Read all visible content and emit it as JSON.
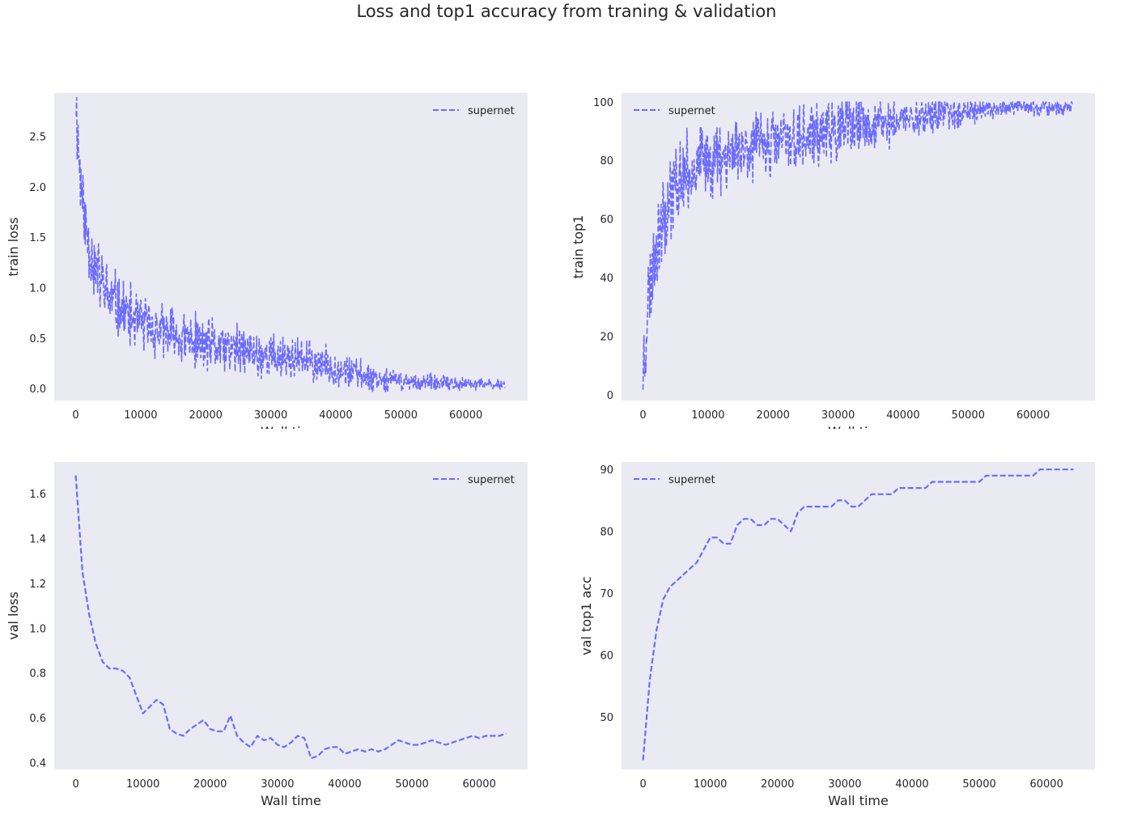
{
  "figure": {
    "title": "Loss and top1 accuracy from traning & validation"
  },
  "colors": {
    "series": "#6b6bff",
    "axes_bg": "#eaeaf2"
  },
  "chart_data": [
    {
      "id": "train-loss",
      "type": "line",
      "xlabel": "Wall time",
      "ylabel": "train loss",
      "xlim": [
        -3300,
        69500
      ],
      "ylim": [
        -0.12,
        2.93
      ],
      "xticks": [
        0,
        10000,
        20000,
        30000,
        40000,
        50000,
        60000
      ],
      "yticks": [
        0.0,
        0.5,
        1.0,
        1.5,
        2.0,
        2.5
      ],
      "ytick_format": 1,
      "legend": {
        "position": "top-right",
        "entries": [
          "supernet"
        ]
      },
      "grid": false,
      "noisy": true,
      "series": [
        {
          "name": "supernet",
          "x_start": 0,
          "x_end": 66000,
          "n_points": 900,
          "seed": 11,
          "envelope": [
            [
              0,
              2.85
            ],
            [
              600,
              2.2
            ],
            [
              1500,
              1.6
            ],
            [
              3000,
              1.2
            ],
            [
              5000,
              0.9
            ],
            [
              8000,
              0.72
            ],
            [
              12000,
              0.58
            ],
            [
              16000,
              0.5
            ],
            [
              20000,
              0.43
            ],
            [
              25000,
              0.38
            ],
            [
              30000,
              0.32
            ],
            [
              35000,
              0.28
            ],
            [
              40000,
              0.2
            ],
            [
              45000,
              0.12
            ],
            [
              50000,
              0.07
            ],
            [
              55000,
              0.05
            ],
            [
              60000,
              0.04
            ],
            [
              66000,
              0.04
            ]
          ],
          "noise_amp": [
            [
              0,
              0.5
            ],
            [
              3000,
              0.45
            ],
            [
              10000,
              0.35
            ],
            [
              30000,
              0.28
            ],
            [
              40000,
              0.22
            ],
            [
              50000,
              0.12
            ],
            [
              66000,
              0.06
            ]
          ]
        }
      ]
    },
    {
      "id": "train-top1",
      "type": "line",
      "xlabel": "Wall time",
      "ylabel": "train top1",
      "xlim": [
        -3300,
        69500
      ],
      "ylim": [
        -2,
        103
      ],
      "xticks": [
        0,
        10000,
        20000,
        30000,
        40000,
        50000,
        60000
      ],
      "yticks": [
        0,
        20,
        40,
        60,
        80,
        100
      ],
      "ytick_format": 0,
      "legend": {
        "position": "top-left",
        "entries": [
          "supernet"
        ]
      },
      "grid": false,
      "noisy": true,
      "series": [
        {
          "name": "supernet",
          "x_start": 0,
          "x_end": 66000,
          "n_points": 900,
          "seed": 23,
          "envelope": [
            [
              0,
              8
            ],
            [
              700,
              30
            ],
            [
              1500,
              45
            ],
            [
              3000,
              62
            ],
            [
              5000,
              72
            ],
            [
              8000,
              78
            ],
            [
              12000,
              82
            ],
            [
              16000,
              85
            ],
            [
              20000,
              86
            ],
            [
              25000,
              88
            ],
            [
              30000,
              90
            ],
            [
              35000,
              92
            ],
            [
              40000,
              94
            ],
            [
              45000,
              96
            ],
            [
              50000,
              97
            ],
            [
              55000,
              98
            ],
            [
              60000,
              98
            ],
            [
              66000,
              98
            ]
          ],
          "noise_amp": [
            [
              0,
              20
            ],
            [
              3000,
              18
            ],
            [
              10000,
              15
            ],
            [
              30000,
              13
            ],
            [
              45000,
              8
            ],
            [
              55000,
              4
            ],
            [
              66000,
              3
            ]
          ],
          "cap": 100
        }
      ]
    },
    {
      "id": "val-loss",
      "type": "line",
      "xlabel": "Wall time",
      "ylabel": "val loss",
      "xlim": [
        -3200,
        67200
      ],
      "ylim": [
        0.37,
        1.74
      ],
      "xticks": [
        0,
        10000,
        20000,
        30000,
        40000,
        50000,
        60000
      ],
      "yticks": [
        0.4,
        0.6,
        0.8,
        1.0,
        1.2,
        1.4,
        1.6
      ],
      "ytick_format": 1,
      "legend": {
        "position": "top-right",
        "entries": [
          "supernet"
        ]
      },
      "grid": false,
      "noisy": false,
      "series": [
        {
          "name": "supernet",
          "x": [
            0,
            1000,
            2000,
            3000,
            4000,
            5000,
            6000,
            7000,
            8000,
            9000,
            10000,
            11000,
            12000,
            13000,
            14000,
            15000,
            16000,
            17000,
            18000,
            19000,
            20000,
            21000,
            22000,
            23000,
            24000,
            25000,
            26000,
            27000,
            28000,
            29000,
            30000,
            31000,
            32000,
            33000,
            34000,
            35000,
            36000,
            37000,
            38000,
            39000,
            40000,
            41000,
            42000,
            43000,
            44000,
            45000,
            46000,
            47000,
            48000,
            49000,
            50000,
            51000,
            52000,
            53000,
            54000,
            55000,
            56000,
            57000,
            58000,
            59000,
            60000,
            61000,
            62000,
            63000,
            64000
          ],
          "y": [
            1.68,
            1.25,
            1.06,
            0.93,
            0.85,
            0.82,
            0.82,
            0.81,
            0.78,
            0.7,
            0.62,
            0.65,
            0.68,
            0.66,
            0.55,
            0.53,
            0.52,
            0.55,
            0.57,
            0.59,
            0.55,
            0.54,
            0.54,
            0.61,
            0.52,
            0.49,
            0.47,
            0.52,
            0.5,
            0.51,
            0.48,
            0.47,
            0.49,
            0.52,
            0.51,
            0.42,
            0.43,
            0.46,
            0.47,
            0.47,
            0.44,
            0.45,
            0.46,
            0.45,
            0.46,
            0.45,
            0.46,
            0.48,
            0.5,
            0.49,
            0.48,
            0.48,
            0.49,
            0.5,
            0.49,
            0.48,
            0.49,
            0.5,
            0.51,
            0.52,
            0.51,
            0.52,
            0.52,
            0.52,
            0.53
          ]
        }
      ]
    },
    {
      "id": "val-top1",
      "type": "line",
      "xlabel": "Wall time",
      "ylabel": "val top1 acc",
      "xlim": [
        -3200,
        67200
      ],
      "ylim": [
        41.5,
        91.2
      ],
      "xticks": [
        0,
        10000,
        20000,
        30000,
        40000,
        50000,
        60000
      ],
      "yticks": [
        50,
        60,
        70,
        80,
        90
      ],
      "ytick_format": 0,
      "legend": {
        "position": "top-left",
        "entries": [
          "supernet"
        ]
      },
      "grid": false,
      "noisy": false,
      "series": [
        {
          "name": "supernet",
          "x": [
            0,
            1000,
            2000,
            3000,
            4000,
            5000,
            6000,
            7000,
            8000,
            9000,
            10000,
            11000,
            12000,
            13000,
            14000,
            15000,
            16000,
            17000,
            18000,
            19000,
            20000,
            21000,
            22000,
            23000,
            24000,
            25000,
            26000,
            27000,
            28000,
            29000,
            30000,
            31000,
            32000,
            33000,
            34000,
            35000,
            36000,
            37000,
            38000,
            39000,
            40000,
            41000,
            42000,
            43000,
            44000,
            45000,
            46000,
            47000,
            48000,
            49000,
            50000,
            51000,
            52000,
            53000,
            54000,
            55000,
            56000,
            57000,
            58000,
            59000,
            60000,
            61000,
            62000,
            63000,
            64000
          ],
          "y": [
            43,
            56,
            64,
            69,
            71,
            72,
            73,
            74,
            75,
            77,
            79,
            79,
            78,
            78,
            81,
            82,
            82,
            81,
            81,
            82,
            82,
            81,
            80,
            83,
            84,
            84,
            84,
            84,
            84,
            85,
            85,
            84,
            84,
            85,
            86,
            86,
            86,
            86,
            87,
            87,
            87,
            87,
            87,
            88,
            88,
            88,
            88,
            88,
            88,
            88,
            88,
            89,
            89,
            89,
            89,
            89,
            89,
            89,
            89,
            90,
            90,
            90,
            90,
            90,
            90
          ]
        }
      ]
    }
  ]
}
